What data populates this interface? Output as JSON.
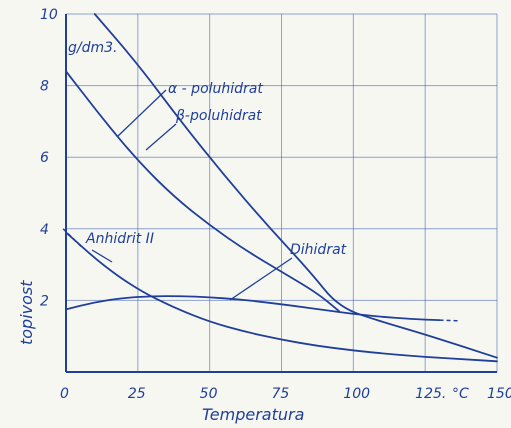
{
  "chart_data": {
    "type": "line",
    "xlabel": "Temperatura",
    "ylabel": "topivost",
    "unit_label": "g/dm3.",
    "x_unit": "°C",
    "xlim": [
      0,
      150
    ],
    "ylim": [
      0,
      10
    ],
    "x_ticks": [
      "0",
      "25",
      "50",
      "75",
      "100",
      "125.",
      "150"
    ],
    "y_ticks": [
      "2",
      "4",
      "6",
      "8",
      "10"
    ],
    "grid": true,
    "colors": {
      "ink": "#1f3f9a",
      "grid": "#3d5bb5",
      "paper": "#f7f7f2"
    },
    "series": [
      {
        "name": "α-poluhidrat",
        "x": [
          10,
          25,
          40,
          55,
          70,
          85,
          95,
          110,
          125,
          150
        ],
        "y": [
          10,
          8.6,
          7.0,
          5.5,
          4.1,
          2.8,
          1.8,
          1.4,
          1.05,
          0.4
        ]
      },
      {
        "name": "β-poluhidrat",
        "x": [
          0,
          12.5,
          25,
          37.5,
          50,
          62.5,
          75,
          87.5,
          95
        ],
        "y": [
          8.4,
          7.1,
          5.9,
          4.9,
          4.1,
          3.4,
          2.8,
          2.2,
          1.7
        ]
      },
      {
        "name": "Anhidrit II",
        "x": [
          0,
          12.5,
          25,
          37.5,
          50,
          62.5,
          75,
          87.5,
          100,
          112.5,
          125,
          137.5,
          150
        ],
        "y": [
          3.9,
          3.0,
          2.3,
          1.8,
          1.4,
          1.12,
          0.9,
          0.73,
          0.6,
          0.5,
          0.42,
          0.36,
          0.3
        ]
      },
      {
        "name": "Dihidrat",
        "x": [
          0,
          10,
          20,
          30,
          40,
          50,
          60,
          70,
          80,
          90,
          100,
          110,
          120,
          130
        ],
        "y": [
          1.75,
          1.95,
          2.07,
          2.12,
          2.12,
          2.09,
          2.03,
          1.94,
          1.84,
          1.73,
          1.62,
          1.54,
          1.48,
          1.45
        ]
      }
    ],
    "annotations": [
      {
        "text": "α - poluhidrat",
        "series": "α-poluhidrat"
      },
      {
        "text": "β-poluhidrat",
        "series": "β-poluhidrat"
      },
      {
        "text": "Anhidrit II",
        "series": "Anhidrit II"
      },
      {
        "text": "Dihidrat",
        "series": "Dihidrat"
      }
    ]
  }
}
